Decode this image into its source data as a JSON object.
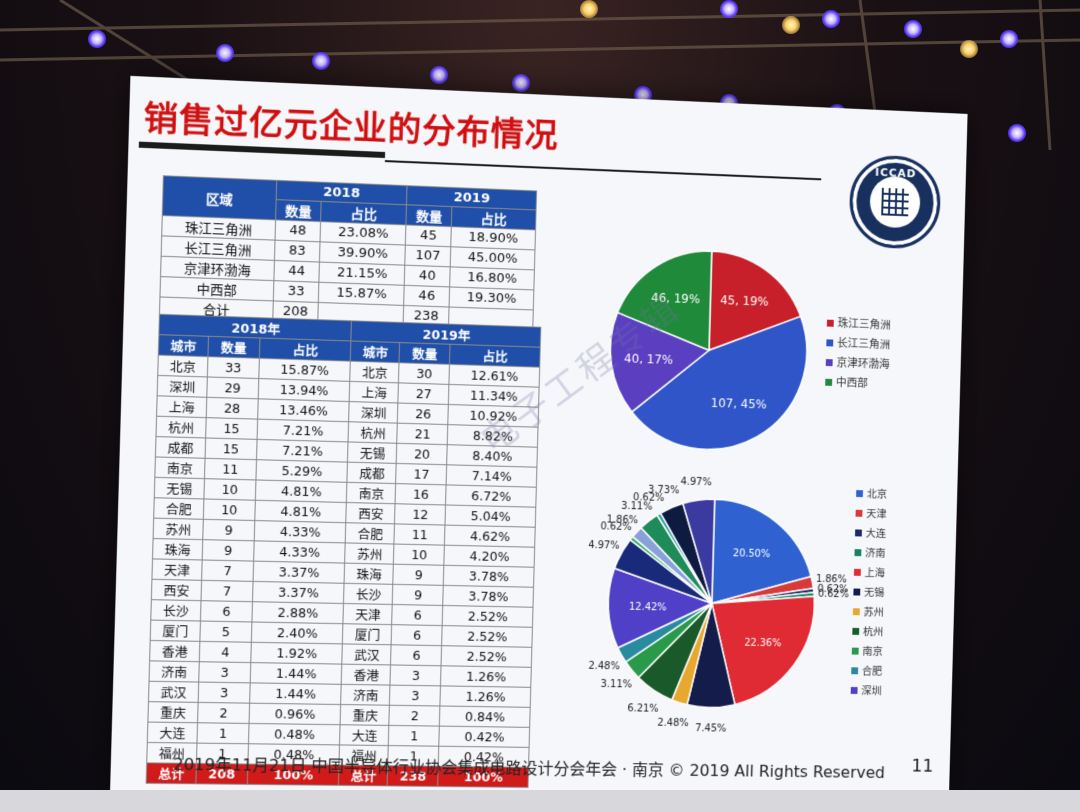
{
  "slide": {
    "title": "销售过亿元企业的分布情况",
    "logo_text": "ICCAD",
    "footer": "2019年11月21日 中国半导体行业协会集成电路设计分会年会 · 南京 © 2019 All Rights Reserved",
    "page_number": "11",
    "watermark": "电子工程专辑"
  },
  "region_table": {
    "col_region": "区域",
    "year_2018": "2018",
    "year_2019": "2019",
    "col_count": "数量",
    "col_share": "占比",
    "rows": [
      {
        "region": "珠江三角洲",
        "c18": "48",
        "s18": "23.08%",
        "c19": "45",
        "s19": "18.90%"
      },
      {
        "region": "长江三角洲",
        "c18": "83",
        "s18": "39.90%",
        "c19": "107",
        "s19": "45.00%"
      },
      {
        "region": "京津环渤海",
        "c18": "44",
        "s18": "21.15%",
        "c19": "40",
        "s19": "16.80%"
      },
      {
        "region": "中西部",
        "c18": "33",
        "s18": "15.87%",
        "c19": "46",
        "s19": "19.30%"
      }
    ],
    "total_label": "合计",
    "total_2018": "208",
    "total_2019": "238"
  },
  "city_table": {
    "year_2018": "2018年",
    "year_2019": "2019年",
    "col_city": "城市",
    "col_count": "数量",
    "col_share": "占比",
    "rows": [
      [
        "北京",
        "33",
        "15.87%",
        "北京",
        "30",
        "12.61%"
      ],
      [
        "深圳",
        "29",
        "13.94%",
        "上海",
        "27",
        "11.34%"
      ],
      [
        "上海",
        "28",
        "13.46%",
        "深圳",
        "26",
        "10.92%"
      ],
      [
        "杭州",
        "15",
        "7.21%",
        "杭州",
        "21",
        "8.82%"
      ],
      [
        "成都",
        "15",
        "7.21%",
        "无锡",
        "20",
        "8.40%"
      ],
      [
        "南京",
        "11",
        "5.29%",
        "成都",
        "17",
        "7.14%"
      ],
      [
        "无锡",
        "10",
        "4.81%",
        "南京",
        "16",
        "6.72%"
      ],
      [
        "合肥",
        "10",
        "4.81%",
        "西安",
        "12",
        "5.04%"
      ],
      [
        "苏州",
        "9",
        "4.33%",
        "合肥",
        "11",
        "4.62%"
      ],
      [
        "珠海",
        "9",
        "4.33%",
        "苏州",
        "10",
        "4.20%"
      ],
      [
        "天津",
        "7",
        "3.37%",
        "珠海",
        "9",
        "3.78%"
      ],
      [
        "西安",
        "7",
        "3.37%",
        "长沙",
        "9",
        "3.78%"
      ],
      [
        "长沙",
        "6",
        "2.88%",
        "天津",
        "6",
        "2.52%"
      ],
      [
        "厦门",
        "5",
        "2.40%",
        "厦门",
        "6",
        "2.52%"
      ],
      [
        "香港",
        "4",
        "1.92%",
        "武汉",
        "6",
        "2.52%"
      ],
      [
        "济南",
        "3",
        "1.44%",
        "香港",
        "3",
        "1.26%"
      ],
      [
        "武汉",
        "3",
        "1.44%",
        "济南",
        "3",
        "1.26%"
      ],
      [
        "重庆",
        "2",
        "0.96%",
        "重庆",
        "2",
        "0.84%"
      ],
      [
        "大连",
        "1",
        "0.48%",
        "大连",
        "1",
        "0.42%"
      ],
      [
        "福州",
        "1",
        "0.48%",
        "福州",
        "1",
        "0.42%"
      ]
    ],
    "total_label": "总计",
    "total_2018": "208",
    "total_2018_share": "100%",
    "total_2019": "238",
    "total_2019_share": "100%"
  },
  "chart_data": [
    {
      "type": "pie",
      "title": "",
      "slices": [
        {
          "name": "珠江三角洲",
          "value": 45,
          "label": "45, 19%",
          "color": "#c8202a"
        },
        {
          "name": "长江三角洲",
          "value": 107,
          "label": "107, 45%",
          "color": "#2f55c8"
        },
        {
          "name": "京津环渤海",
          "value": 40,
          "label": "40, 17%",
          "color": "#5a3fc0"
        },
        {
          "name": "中西部",
          "value": 46,
          "label": "46, 19%",
          "color": "#1f8a3a"
        }
      ],
      "legend": "right"
    },
    {
      "type": "pie",
      "title": "",
      "slices": [
        {
          "name": "北京",
          "value": 20.5,
          "label": "20.50%",
          "color": "#2f62d0"
        },
        {
          "name": "天津",
          "value": 1.86,
          "label": "1.86%",
          "color": "#d83a3a"
        },
        {
          "name": "大连",
          "value": 0.62,
          "label": "0.62%",
          "color": "#1c2a6a"
        },
        {
          "name": "济南",
          "value": 0.62,
          "label": "0.62%",
          "color": "#17845e"
        },
        {
          "name": "上海",
          "value": 22.36,
          "label": "22.36%",
          "color": "#e02a34"
        },
        {
          "name": "无锡",
          "value": 7.45,
          "label": "7.45%",
          "color": "#141c4a"
        },
        {
          "name": "苏州",
          "value": 2.48,
          "label": "2.48%",
          "color": "#e8a830"
        },
        {
          "name": "杭州",
          "value": 6.21,
          "label": "6.21%",
          "color": "#1a5a2a"
        },
        {
          "name": "南京",
          "value": 3.11,
          "label": "3.11%",
          "color": "#2a9a4a"
        },
        {
          "name": "合肥",
          "value": 2.48,
          "label": "2.48%",
          "color": "#2a8aa0"
        },
        {
          "name": "深圳",
          "value": 12.42,
          "label": "12.42%",
          "color": "#5040c8"
        },
        {
          "name": "",
          "value": 4.97,
          "label": "4.97%",
          "color": "#1a2a7a"
        },
        {
          "name": "",
          "value": 0.62,
          "label": "0.62%",
          "color": "#3ab06a"
        },
        {
          "name": "",
          "value": 1.86,
          "label": "1.86%",
          "color": "#8aa0d8"
        },
        {
          "name": "",
          "value": 3.11,
          "label": "3.11%",
          "color": "#1f8a5a"
        },
        {
          "name": "",
          "value": 0.62,
          "label": "0.62%",
          "color": "#2aa0a0"
        },
        {
          "name": "",
          "value": 3.73,
          "label": "3.73%",
          "color": "#0f1a40"
        },
        {
          "name": "",
          "value": 4.97,
          "label": "4.97%",
          "color": "#3a3aa0"
        }
      ],
      "legend": "right"
    }
  ]
}
